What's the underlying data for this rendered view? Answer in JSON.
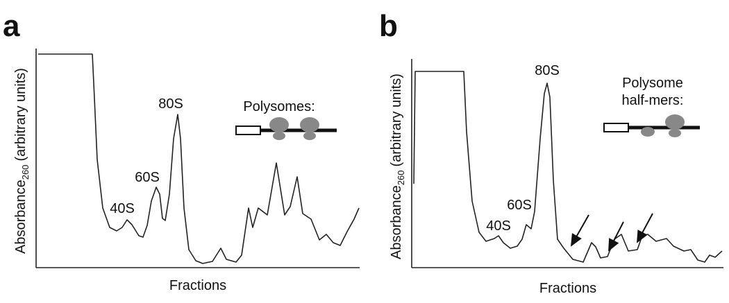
{
  "panels": [
    {
      "label": "a",
      "y_label": {
        "text": "Absorbance",
        "subscript": "260",
        "suffix": "(arbitrary units)"
      },
      "x_label": "Fractions",
      "peaks": [
        "40S",
        "60S",
        "80S"
      ],
      "legend": [
        "Polysomes:"
      ]
    },
    {
      "label": "b",
      "y_label": {
        "text": "Absorbance",
        "subscript": "260",
        "suffix": "(arbitrary units)"
      },
      "x_label": "Fractions",
      "peaks": [
        "40S",
        "60S",
        "80S"
      ],
      "legend": [
        "Polysome",
        "half-mers:"
      ]
    }
  ]
}
